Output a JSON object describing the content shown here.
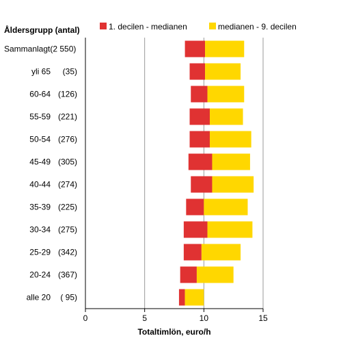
{
  "chart_data": {
    "type": "bar",
    "stacked": true,
    "orientation": "horizontal",
    "title": "",
    "row_header": "Åldersgrupp (antal)",
    "xlabel": "Totaltimlön, euro/h",
    "xlim": [
      0,
      15
    ],
    "xticks": [
      0,
      5,
      10,
      15
    ],
    "grid": "vertical",
    "legend_position": "top",
    "categories": [
      {
        "group": "Sammanlagt",
        "count": "(2 550)"
      },
      {
        "group": "yli 65",
        "count": "(35)"
      },
      {
        "group": "60-64",
        "count": "(126)"
      },
      {
        "group": "55-59",
        "count": "(221)"
      },
      {
        "group": "50-54",
        "count": "(276)"
      },
      {
        "group": "45-49",
        "count": "(305)"
      },
      {
        "group": "40-44",
        "count": "(274)"
      },
      {
        "group": "35-39",
        "count": "(225)"
      },
      {
        "group": "30-34",
        "count": "(275)"
      },
      {
        "group": "25-29",
        "count": "(342)"
      },
      {
        "group": "20-24",
        "count": "(367)"
      },
      {
        "group": "alle 20",
        "count": "( 95)"
      }
    ],
    "series": [
      {
        "name": "1. decilen - medianen",
        "color": "#e03232",
        "start": [
          8.4,
          8.8,
          8.9,
          8.8,
          8.8,
          8.7,
          8.9,
          8.5,
          8.3,
          8.3,
          8.0,
          7.9
        ],
        "end": [
          10.1,
          10.1,
          10.3,
          10.5,
          10.5,
          10.7,
          10.7,
          10.0,
          10.3,
          9.8,
          9.4,
          8.4
        ]
      },
      {
        "name": "medianen - 9. decilen",
        "color": "#ffd700",
        "start": [
          10.1,
          10.1,
          10.3,
          10.5,
          10.5,
          10.7,
          10.7,
          10.0,
          10.3,
          9.8,
          9.4,
          8.4
        ],
        "end": [
          13.4,
          13.1,
          13.4,
          13.3,
          14.0,
          13.9,
          14.2,
          13.7,
          14.1,
          13.1,
          12.5,
          10.0
        ]
      }
    ]
  }
}
